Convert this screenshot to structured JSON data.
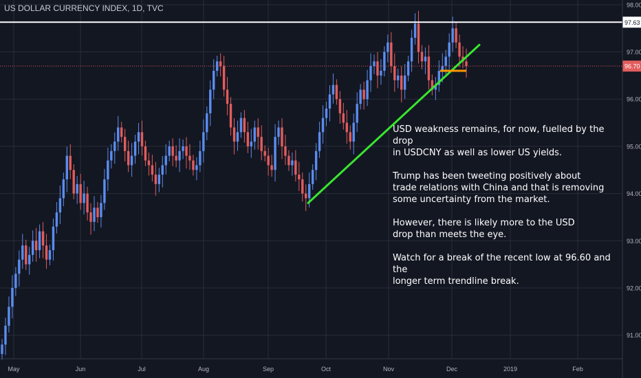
{
  "chart_data": {
    "type": "candlestick",
    "title": "US DOLLAR CURRENCY INDEX, 1D, TVC",
    "x_ticks": [
      "May",
      "Jun",
      "Jul",
      "Aug",
      "Sep",
      "Oct",
      "Nov",
      "Dec",
      "2019",
      "Feb"
    ],
    "y_ticks": [
      "98.00",
      "97.00",
      "96.00",
      "95.00",
      "94.00",
      "93.00",
      "92.00",
      "91.00"
    ],
    "ylim": [
      90.5,
      98.1
    ],
    "grid": true,
    "resistance_level": {
      "label": "97.63",
      "value": 97.63
    },
    "last_price": {
      "label": "96.70",
      "value": 96.7
    },
    "support_zone": {
      "value": 96.6
    },
    "trendline": {
      "start": {
        "date": "2018-09-21",
        "value": 93.8
      },
      "end": {
        "date": "2018-12-14",
        "value": 97.15
      }
    },
    "series": [
      {
        "values": [
          90.8,
          91.2,
          91.6,
          92.0,
          92.3,
          92.6,
          92.9,
          92.5,
          92.7,
          93.0,
          92.8,
          93.2,
          92.9,
          92.6,
          92.8,
          93.3,
          93.6,
          93.9,
          94.3,
          94.8,
          94.5,
          94.0,
          94.2,
          93.8,
          94.0,
          93.6,
          93.4,
          93.7,
          93.5,
          93.8,
          94.3,
          94.7,
          94.9,
          95.1,
          95.4,
          95.2,
          94.9,
          94.6,
          94.8,
          95.1,
          95.3,
          95.0,
          94.7,
          94.6,
          94.4,
          94.2,
          94.4,
          94.6,
          94.8,
          95.0,
          94.8,
          94.7,
          94.9,
          95.0,
          94.8,
          94.7,
          94.5,
          94.6,
          94.9,
          95.3,
          95.7,
          96.2,
          96.6,
          96.8,
          96.7,
          96.2,
          95.9,
          95.4,
          95.1,
          95.3,
          95.6,
          95.3,
          95.0,
          95.1,
          95.4,
          95.2,
          94.9,
          94.8,
          94.6,
          94.5,
          95.2,
          95.4,
          95.0,
          94.8,
          94.6,
          94.7,
          94.4,
          94.3,
          94.0,
          93.9,
          94.2,
          94.5,
          94.9,
          95.3,
          95.6,
          95.8,
          96.1,
          96.3,
          96.0,
          95.7,
          95.5,
          95.3,
          95.1,
          95.5,
          95.9,
          96.2,
          96.0,
          96.4,
          96.7,
          96.8,
          96.5,
          96.6,
          97.0,
          97.2,
          96.7,
          96.4,
          96.5,
          96.2,
          96.5,
          96.8,
          97.3,
          97.6,
          97.0,
          96.8,
          96.9,
          96.4,
          96.2,
          96.3,
          96.6,
          96.7,
          96.9,
          97.2,
          97.5,
          97.2,
          96.9,
          96.8,
          96.7
        ]
      }
    ]
  },
  "annotation": {
    "paragraphs": [
      [
        "USD weakness remains, for now, fuelled by the drop",
        "in USDCNY as well as lower US yields."
      ],
      [
        "Trump has been tweeting positively about",
        "trade relations with China and that is removing",
        "some uncertainty from the market."
      ],
      [
        "However, there is likely more to the USD",
        "drop than meets the eye."
      ],
      [
        "Watch for a break of the recent low at 96.60 and the",
        "longer term trendline break."
      ]
    ]
  },
  "colors": {
    "background": "#131722",
    "grid": "#2a2e39",
    "up_candle": "#5b8def",
    "down_candle": "#e25d5d",
    "trendline": "#39e62e",
    "resistance_line": "#ffffff",
    "last_price_line": "#e25d5d",
    "support_marker": "#ff9800",
    "axis_text": "#b2b5be"
  }
}
